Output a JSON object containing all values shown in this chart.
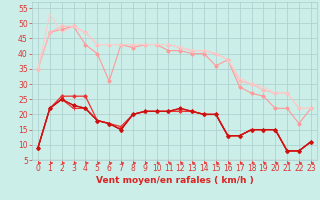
{
  "title": "",
  "xlabel": "Vent moyen/en rafales ( km/h )",
  "ylabel": "",
  "background_color": "#cceee8",
  "grid_color": "#aacccc",
  "x": [
    0,
    1,
    2,
    3,
    4,
    5,
    6,
    7,
    8,
    9,
    10,
    11,
    12,
    13,
    14,
    15,
    16,
    17,
    18,
    19,
    20,
    21,
    22,
    23
  ],
  "series": [
    {
      "color": "#ff9999",
      "linewidth": 0.8,
      "marker": "D",
      "markersize": 1.8,
      "data": [
        35,
        47,
        48,
        49,
        43,
        40,
        31,
        43,
        42,
        43,
        43,
        41,
        41,
        40,
        40,
        36,
        38,
        29,
        27,
        26,
        22,
        22,
        17,
        22
      ]
    },
    {
      "color": "#ffbbbb",
      "linewidth": 0.8,
      "marker": "D",
      "markersize": 1.8,
      "data": [
        35,
        47,
        49,
        49,
        47,
        43,
        43,
        43,
        43,
        43,
        43,
        43,
        42,
        41,
        41,
        40,
        38,
        31,
        30,
        28,
        27,
        27,
        22,
        22
      ]
    },
    {
      "color": "#ffcccc",
      "linewidth": 0.8,
      "marker": null,
      "markersize": 0,
      "data": [
        35,
        53,
        47,
        49,
        47,
        43,
        43,
        43,
        43,
        43,
        43,
        43,
        42,
        41,
        41,
        40,
        38,
        32,
        30,
        29,
        27,
        27,
        22,
        22
      ]
    },
    {
      "color": "#ee3333",
      "linewidth": 0.9,
      "marker": "D",
      "markersize": 1.8,
      "data": [
        9,
        22,
        26,
        26,
        26,
        18,
        17,
        16,
        20,
        21,
        21,
        21,
        21,
        21,
        20,
        20,
        13,
        13,
        15,
        15,
        15,
        8,
        8,
        11
      ]
    },
    {
      "color": "#ee3333",
      "linewidth": 0.9,
      "marker": "+",
      "markersize": 3.0,
      "data": [
        9,
        22,
        25,
        22,
        22,
        18,
        17,
        15,
        20,
        21,
        21,
        21,
        21,
        21,
        20,
        20,
        13,
        13,
        15,
        15,
        15,
        8,
        8,
        11
      ]
    },
    {
      "color": "#dd2222",
      "linewidth": 0.9,
      "marker": "^",
      "markersize": 2.0,
      "data": [
        9,
        22,
        25,
        23,
        22,
        18,
        17,
        15,
        20,
        21,
        21,
        21,
        22,
        21,
        20,
        20,
        13,
        13,
        15,
        15,
        15,
        8,
        8,
        11
      ]
    },
    {
      "color": "#cc1111",
      "linewidth": 0.9,
      "marker": "D",
      "markersize": 1.8,
      "data": [
        9,
        22,
        25,
        23,
        22,
        18,
        17,
        15,
        20,
        21,
        21,
        21,
        22,
        21,
        20,
        20,
        13,
        13,
        15,
        15,
        15,
        8,
        8,
        11
      ]
    }
  ],
  "ylim": [
    5,
    57
  ],
  "xlim": [
    -0.5,
    23.5
  ],
  "yticks": [
    5,
    10,
    15,
    20,
    25,
    30,
    35,
    40,
    45,
    50,
    55
  ],
  "xticks": [
    0,
    1,
    2,
    3,
    4,
    5,
    6,
    7,
    8,
    9,
    10,
    11,
    12,
    13,
    14,
    15,
    16,
    17,
    18,
    19,
    20,
    21,
    22,
    23
  ],
  "arrow_color": "#ee3333",
  "xlabel_color": "#dd2222",
  "xlabel_fontsize": 6.5,
  "tick_fontsize": 5.5,
  "tick_color": "#dd3333"
}
